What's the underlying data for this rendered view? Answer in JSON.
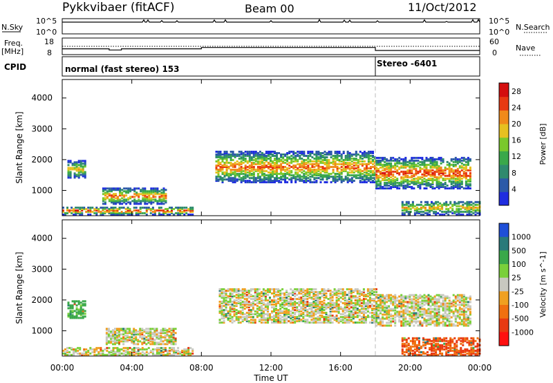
{
  "header": {
    "station": "Pykkvibaer (fitACF)",
    "beam": "Beam 00",
    "date": "11/Oct/2012"
  },
  "top_panels": {
    "nsky_label": "N.Sky",
    "nsky_ticks": [
      "10^5",
      "10^0"
    ],
    "nsearch_label": "N.Search",
    "nsearch_ticks": [
      "10^5",
      "10^0"
    ],
    "freq_label": "Freq.",
    "freq_unit": "[MHz]",
    "freq_ticks": [
      "18",
      "8"
    ],
    "nave_label": "Nave",
    "nave_ticks": [
      "60",
      "0"
    ],
    "cpid_label": "CPID",
    "cpid_segments": [
      {
        "label": "normal (fast stereo) 153",
        "start_hour": 0,
        "end_hour": 18
      },
      {
        "label": "Stereo -6401",
        "start_hour": 18,
        "end_hour": 24
      }
    ],
    "freq_steps": [
      {
        "start_hour": 0,
        "end_hour": 2.7,
        "freq_mhz": 11.5
      },
      {
        "start_hour": 2.7,
        "end_hour": 3.4,
        "freq_mhz": 10.8
      },
      {
        "start_hour": 3.4,
        "end_hour": 8.0,
        "freq_mhz": 11.5
      },
      {
        "start_hour": 8.0,
        "end_hour": 18.0,
        "freq_mhz": 12.3
      },
      {
        "start_hour": 18.0,
        "end_hour": 24.0,
        "freq_mhz": 10.5
      }
    ]
  },
  "axes": {
    "ylabel": "Slant Range [km]",
    "xlabel": "Time UT",
    "yticks": [
      "1000",
      "2000",
      "3000",
      "4000"
    ],
    "xticks": [
      "00:00",
      "04:00",
      "08:00",
      "12:00",
      "16:00",
      "20:00",
      "00:00"
    ]
  },
  "chart_data": [
    {
      "type": "heatmap",
      "title": "",
      "xlabel": "Time UT",
      "ylabel": "Slant Range [km]",
      "xlim": [
        0,
        24
      ],
      "ylim": [
        180,
        4600
      ],
      "colorbar": {
        "label": "Power [dB]",
        "ticks": [
          "4",
          "8",
          "12",
          "16",
          "20",
          "24",
          "28"
        ],
        "range": [
          0,
          30
        ],
        "colors": [
          "#1f2de0",
          "#2c5aa8",
          "#2f8a6e",
          "#3aa84a",
          "#7ac82c",
          "#e6c020",
          "#f08a1a",
          "#e83a12",
          "#d40e0e"
        ]
      },
      "bands": [
        {
          "start_hour": 0.3,
          "end_hour": 1.3,
          "range_low": 1450,
          "range_high": 2000,
          "value": 16
        },
        {
          "start_hour": 2.3,
          "end_hour": 6.0,
          "range_low": 600,
          "range_high": 1100,
          "value": 20
        },
        {
          "start_hour": 0.0,
          "end_hour": 7.5,
          "range_low": 250,
          "range_high": 500,
          "value": 22
        },
        {
          "start_hour": 8.8,
          "end_hour": 18.0,
          "range_low": 1300,
          "range_high": 2300,
          "value": 20
        },
        {
          "start_hour": 18.0,
          "end_hour": 23.5,
          "range_low": 1100,
          "range_high": 2100,
          "value": 22
        },
        {
          "start_hour": 19.5,
          "end_hour": 24.0,
          "range_low": 250,
          "range_high": 700,
          "value": 16
        }
      ]
    },
    {
      "type": "heatmap",
      "title": "",
      "xlabel": "Time UT",
      "ylabel": "Slant Range [km]",
      "xlim": [
        0,
        24
      ],
      "ylim": [
        180,
        4600
      ],
      "colorbar": {
        "label": "Velocity [m s^-1]",
        "ticks": [
          "1000",
          "500",
          "100",
          "25",
          "-25",
          "-100",
          "-500",
          "-1000"
        ],
        "colors": [
          "#1f4fd8",
          "#2a7a7a",
          "#3aa84a",
          "#7ad03a",
          "#c8c8c0",
          "#f0a020",
          "#f07010",
          "#e83a12",
          "#ff1010"
        ]
      },
      "bands": [
        {
          "start_hour": 0.3,
          "end_hour": 1.3,
          "range_low": 1450,
          "range_high": 2000,
          "value": 100
        },
        {
          "start_hour": 2.5,
          "end_hour": 6.5,
          "range_low": 600,
          "range_high": 1100,
          "value": 0
        },
        {
          "start_hour": 0.0,
          "end_hour": 7.5,
          "range_low": 250,
          "range_high": 500,
          "value": 0
        },
        {
          "start_hour": 9.0,
          "end_hour": 18.0,
          "range_low": 1300,
          "range_high": 2400,
          "value": 0
        },
        {
          "start_hour": 18.0,
          "end_hour": 23.5,
          "range_low": 1200,
          "range_high": 2200,
          "value": 0
        },
        {
          "start_hour": 19.5,
          "end_hour": 24.0,
          "range_low": 250,
          "range_high": 800,
          "value": -300
        }
      ]
    }
  ]
}
